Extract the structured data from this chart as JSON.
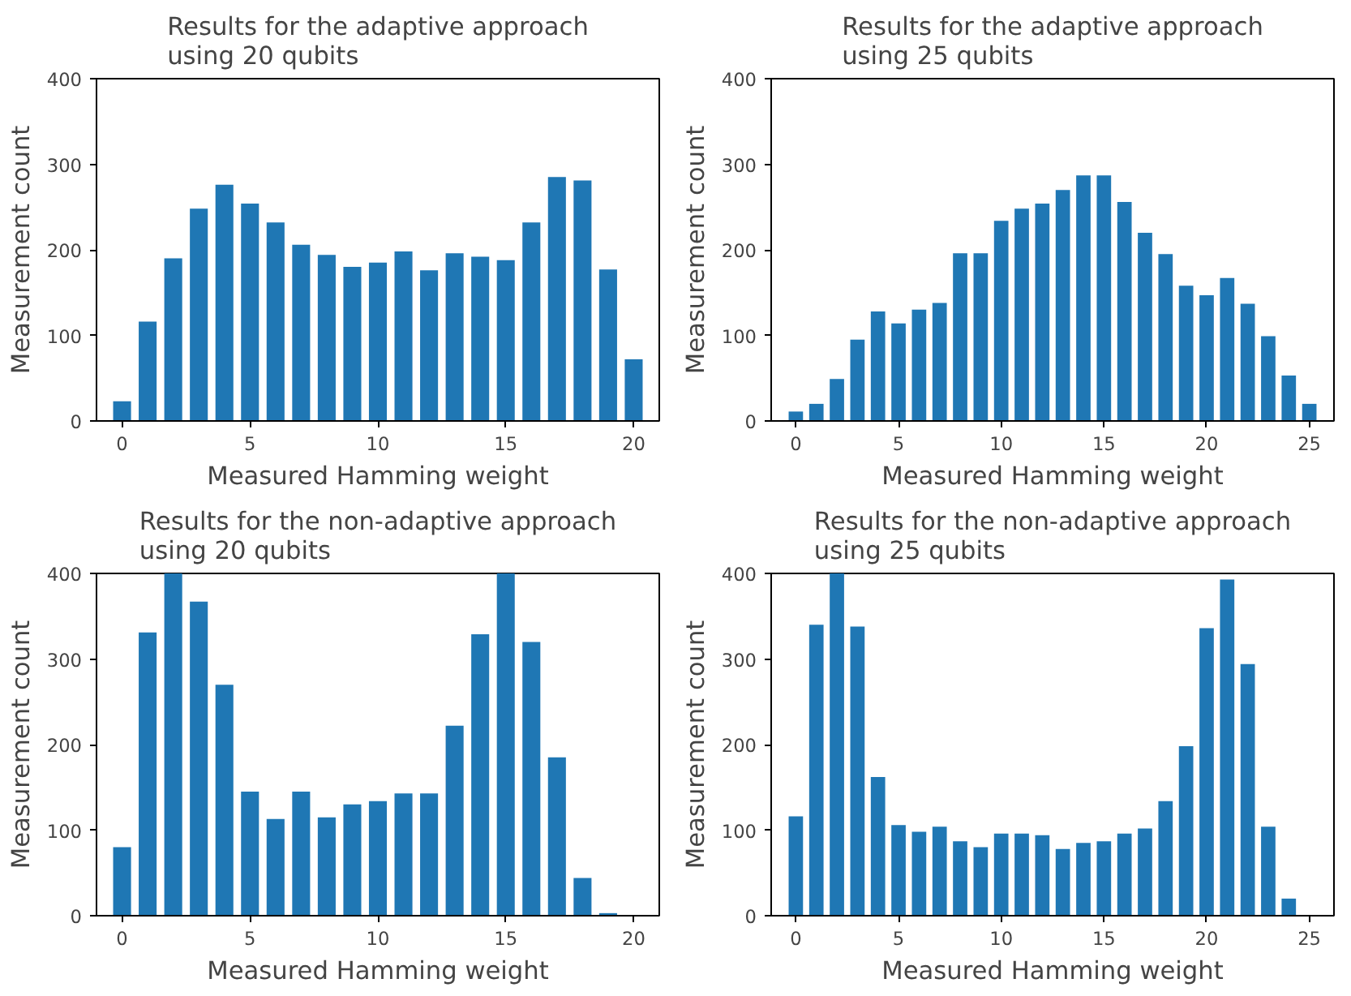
{
  "chart_data": [
    {
      "type": "bar",
      "title": "Results for the adaptive approach\nusing 20 qubits",
      "xlabel": "Measured Hamming weight",
      "ylabel": "Measurement count",
      "x": [
        0,
        1,
        2,
        3,
        4,
        5,
        6,
        7,
        8,
        9,
        10,
        11,
        12,
        13,
        14,
        15,
        16,
        17,
        18,
        19,
        20
      ],
      "values": [
        23,
        116,
        190,
        248,
        276,
        254,
        232,
        206,
        194,
        180,
        185,
        198,
        176,
        196,
        192,
        188,
        232,
        285,
        281,
        177,
        72
      ],
      "color": "#1f77b4",
      "xlim": [
        -1,
        21
      ],
      "xticks": [
        0,
        5,
        10,
        15,
        20
      ],
      "ylim": [
        0,
        400
      ],
      "yticks": [
        0,
        100,
        200,
        300,
        400
      ],
      "grid": false
    },
    {
      "type": "bar",
      "title": "Results for the adaptive approach\nusing 25 qubits",
      "xlabel": "Measured Hamming weight",
      "ylabel": "Measurement count",
      "x": [
        0,
        1,
        2,
        3,
        4,
        5,
        6,
        7,
        8,
        9,
        10,
        11,
        12,
        13,
        14,
        15,
        16,
        17,
        18,
        19,
        20,
        21,
        22,
        23,
        24,
        25
      ],
      "values": [
        11,
        20,
        49,
        95,
        128,
        114,
        130,
        138,
        196,
        196,
        234,
        248,
        254,
        270,
        287,
        287,
        256,
        220,
        195,
        158,
        147,
        167,
        137,
        99,
        53,
        20
      ],
      "color": "#1f77b4",
      "xlim": [
        -1.2,
        26.2
      ],
      "xticks": [
        0,
        5,
        10,
        15,
        20,
        25
      ],
      "ylim": [
        0,
        400
      ],
      "yticks": [
        0,
        100,
        200,
        300,
        400
      ],
      "grid": false
    },
    {
      "type": "bar",
      "title": "Results for the non-adaptive approach\nusing 20 qubits",
      "xlabel": "Measured Hamming weight",
      "ylabel": "Measurement count",
      "x": [
        0,
        1,
        2,
        3,
        4,
        5,
        6,
        7,
        8,
        9,
        10,
        11,
        12,
        13,
        14,
        15,
        16,
        17,
        18,
        19,
        20
      ],
      "values": [
        80,
        331,
        400,
        367,
        270,
        145,
        113,
        145,
        115,
        130,
        134,
        143,
        143,
        222,
        329,
        400,
        320,
        185,
        44,
        3,
        0
      ],
      "color": "#1f77b4",
      "xlim": [
        -1,
        21
      ],
      "xticks": [
        0,
        5,
        10,
        15,
        20
      ],
      "ylim": [
        0,
        400
      ],
      "yticks": [
        0,
        100,
        200,
        300,
        400
      ],
      "grid": false
    },
    {
      "type": "bar",
      "title": "Results for the non-adaptive approach\nusing 25 qubits",
      "xlabel": "Measured Hamming weight",
      "ylabel": "Measurement count",
      "x": [
        0,
        1,
        2,
        3,
        4,
        5,
        6,
        7,
        8,
        9,
        10,
        11,
        12,
        13,
        14,
        15,
        16,
        17,
        18,
        19,
        20,
        21,
        22,
        23,
        24,
        25
      ],
      "values": [
        116,
        340,
        400,
        338,
        162,
        106,
        98,
        104,
        87,
        80,
        96,
        96,
        94,
        78,
        85,
        87,
        96,
        102,
        134,
        198,
        336,
        393,
        294,
        104,
        20,
        0
      ],
      "color": "#1f77b4",
      "xlim": [
        -1.2,
        26.2
      ],
      "xticks": [
        0,
        5,
        10,
        15,
        20,
        25
      ],
      "ylim": [
        0,
        400
      ],
      "yticks": [
        0,
        100,
        200,
        300,
        400
      ],
      "grid": false
    }
  ]
}
